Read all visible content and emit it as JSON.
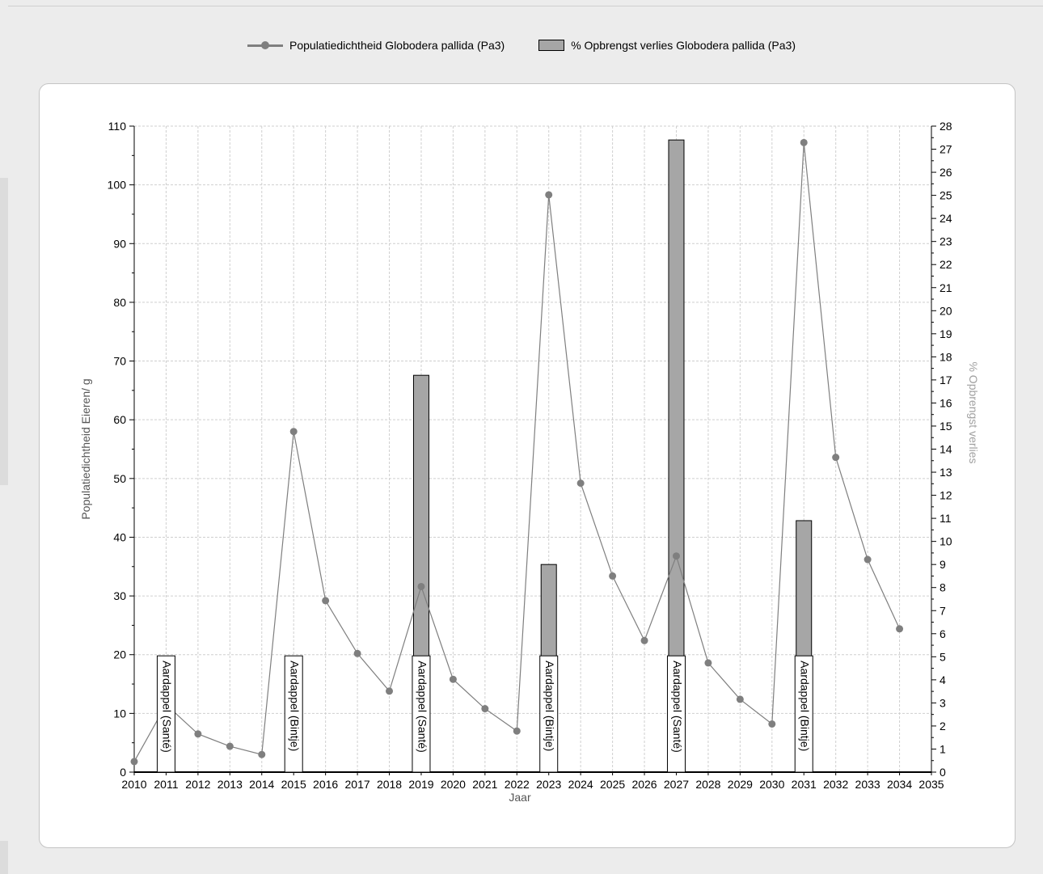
{
  "legend": {
    "line_series": "Populatiedichtheid Globodera pallida (Pa3)",
    "bar_series": "% Opbrengst verlies Globodera pallida (Pa3)"
  },
  "axes": {
    "xlabel": "Jaar",
    "ylabel_left": "Populatiedichtheid Eieren/ g",
    "ylabel_right": "% Opbrengst verlies"
  },
  "colors": {
    "line": "#7f7f7f",
    "bar": "#a6a6a6",
    "grid": "#cfcfcf",
    "axis": "#000000",
    "right_label": "#a0a0a0"
  },
  "chart_data": {
    "type": "line+bar",
    "x": [
      2010,
      2011,
      2012,
      2013,
      2014,
      2015,
      2016,
      2017,
      2018,
      2019,
      2020,
      2021,
      2022,
      2023,
      2024,
      2025,
      2026,
      2027,
      2028,
      2029,
      2030,
      2031,
      2032,
      2033,
      2034
    ],
    "xlim": [
      2010,
      2035
    ],
    "xticks": [
      2010,
      2011,
      2012,
      2013,
      2014,
      2015,
      2016,
      2017,
      2018,
      2019,
      2020,
      2021,
      2022,
      2023,
      2024,
      2025,
      2026,
      2027,
      2028,
      2029,
      2030,
      2031,
      2032,
      2033,
      2034,
      2035
    ],
    "xlabel": "Jaar",
    "y_left": {
      "label": "Populatiedichtheid Eieren/ g",
      "lim": [
        0,
        110
      ],
      "ticks": [
        0,
        10,
        20,
        30,
        40,
        50,
        60,
        70,
        80,
        90,
        100,
        110
      ]
    },
    "y_right": {
      "label": "% Opbrengst verlies",
      "lim": [
        0,
        28
      ],
      "ticks": [
        0,
        1,
        2,
        3,
        4,
        5,
        6,
        7,
        8,
        9,
        10,
        11,
        12,
        13,
        14,
        15,
        16,
        17,
        18,
        19,
        20,
        21,
        22,
        23,
        24,
        25,
        26,
        27,
        28
      ]
    },
    "grid": true,
    "legend_position": "top",
    "series": [
      {
        "name": "Populatiedichtheid Globodera pallida (Pa3)",
        "type": "line",
        "axis": "left",
        "values": [
          1.8,
          11.5,
          6.5,
          4.4,
          3.0,
          58.0,
          29.2,
          20.2,
          13.8,
          31.6,
          15.8,
          10.8,
          7.0,
          98.3,
          49.2,
          33.4,
          22.4,
          36.8,
          18.6,
          12.4,
          8.2,
          107.2,
          53.6,
          36.2,
          24.4
        ]
      },
      {
        "name": "% Opbrengst verlies Globodera pallida (Pa3)",
        "type": "bar",
        "axis": "right",
        "x": [
          2011,
          2015,
          2019,
          2023,
          2027,
          2031
        ],
        "values": [
          0,
          0,
          17.2,
          9.0,
          27.4,
          10.9
        ]
      }
    ],
    "annotations": [
      {
        "x": 2011,
        "text": "Aardappel (Santé)"
      },
      {
        "x": 2015,
        "text": "Aardappel (Bintje)"
      },
      {
        "x": 2019,
        "text": "Aardappel (Santé)"
      },
      {
        "x": 2023,
        "text": "Aardappel (Bintje)"
      },
      {
        "x": 2027,
        "text": "Aardappel (Santé)"
      },
      {
        "x": 2031,
        "text": "Aardappel (Bintje)"
      }
    ]
  }
}
